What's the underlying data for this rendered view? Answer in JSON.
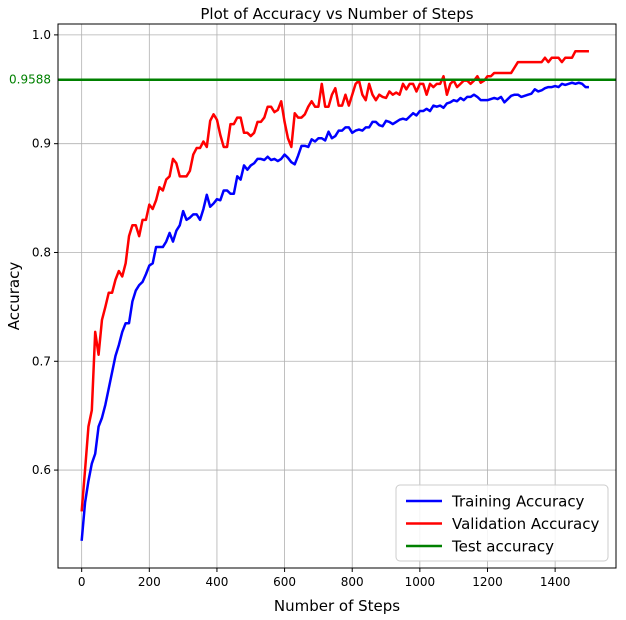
{
  "chart_data": {
    "type": "line",
    "title": "Plot of Accuracy vs Number of Steps",
    "xlabel": "Number of Steps",
    "ylabel": "Accuracy",
    "xlim": [
      -70,
      1580
    ],
    "ylim": [
      0.51,
      1.01
    ],
    "xticks": [
      0,
      200,
      400,
      600,
      800,
      1000,
      1200,
      1400
    ],
    "yticks": [
      0.6,
      0.7,
      0.8,
      0.9,
      1.0
    ],
    "ytick_labels": [
      "0.6",
      "0.7",
      "0.8",
      "0.9",
      "1.0"
    ],
    "grid": true,
    "legend_position": "lower-right",
    "reference_line": {
      "name": "Test accuracy",
      "y": 0.9588,
      "label": "0.9588",
      "color": "#008000"
    },
    "series": [
      {
        "name": "Training Accuracy",
        "color": "#0000ff",
        "points": [
          [
            0,
            0.535
          ],
          [
            10,
            0.57
          ],
          [
            20,
            0.59
          ],
          [
            30,
            0.606
          ],
          [
            40,
            0.615
          ],
          [
            50,
            0.64
          ],
          [
            60,
            0.648
          ],
          [
            70,
            0.66
          ],
          [
            80,
            0.675
          ],
          [
            90,
            0.69
          ],
          [
            100,
            0.705
          ],
          [
            110,
            0.715
          ],
          [
            120,
            0.727
          ],
          [
            130,
            0.735
          ],
          [
            140,
            0.735
          ],
          [
            150,
            0.755
          ],
          [
            160,
            0.765
          ],
          [
            170,
            0.77
          ],
          [
            180,
            0.773
          ],
          [
            190,
            0.78
          ],
          [
            200,
            0.788
          ],
          [
            210,
            0.79
          ],
          [
            220,
            0.805
          ],
          [
            230,
            0.805
          ],
          [
            240,
            0.805
          ],
          [
            250,
            0.81
          ],
          [
            260,
            0.818
          ],
          [
            270,
            0.81
          ],
          [
            280,
            0.82
          ],
          [
            290,
            0.825
          ],
          [
            300,
            0.838
          ],
          [
            310,
            0.83
          ],
          [
            320,
            0.832
          ],
          [
            330,
            0.835
          ],
          [
            340,
            0.835
          ],
          [
            350,
            0.83
          ],
          [
            360,
            0.84
          ],
          [
            370,
            0.853
          ],
          [
            380,
            0.842
          ],
          [
            390,
            0.845
          ],
          [
            400,
            0.849
          ],
          [
            410,
            0.848
          ],
          [
            420,
            0.857
          ],
          [
            430,
            0.857
          ],
          [
            440,
            0.854
          ],
          [
            450,
            0.854
          ],
          [
            460,
            0.87
          ],
          [
            470,
            0.867
          ],
          [
            480,
            0.88
          ],
          [
            490,
            0.876
          ],
          [
            500,
            0.88
          ],
          [
            510,
            0.882
          ],
          [
            520,
            0.886
          ],
          [
            530,
            0.886
          ],
          [
            540,
            0.885
          ],
          [
            550,
            0.888
          ],
          [
            560,
            0.885
          ],
          [
            570,
            0.886
          ],
          [
            580,
            0.884
          ],
          [
            590,
            0.886
          ],
          [
            600,
            0.89
          ],
          [
            610,
            0.887
          ],
          [
            620,
            0.883
          ],
          [
            630,
            0.881
          ],
          [
            640,
            0.889
          ],
          [
            650,
            0.898
          ],
          [
            660,
            0.898
          ],
          [
            670,
            0.897
          ],
          [
            680,
            0.904
          ],
          [
            690,
            0.902
          ],
          [
            700,
            0.905
          ],
          [
            710,
            0.905
          ],
          [
            720,
            0.903
          ],
          [
            730,
            0.911
          ],
          [
            740,
            0.905
          ],
          [
            750,
            0.907
          ],
          [
            760,
            0.912
          ],
          [
            770,
            0.912
          ],
          [
            780,
            0.915
          ],
          [
            790,
            0.915
          ],
          [
            800,
            0.91
          ],
          [
            810,
            0.912
          ],
          [
            820,
            0.913
          ],
          [
            830,
            0.912
          ],
          [
            840,
            0.915
          ],
          [
            850,
            0.915
          ],
          [
            860,
            0.92
          ],
          [
            870,
            0.92
          ],
          [
            880,
            0.917
          ],
          [
            890,
            0.916
          ],
          [
            900,
            0.921
          ],
          [
            910,
            0.92
          ],
          [
            920,
            0.918
          ],
          [
            930,
            0.92
          ],
          [
            940,
            0.922
          ],
          [
            950,
            0.923
          ],
          [
            960,
            0.922
          ],
          [
            970,
            0.925
          ],
          [
            980,
            0.928
          ],
          [
            990,
            0.926
          ],
          [
            1000,
            0.93
          ],
          [
            1010,
            0.93
          ],
          [
            1020,
            0.932
          ],
          [
            1030,
            0.93
          ],
          [
            1040,
            0.935
          ],
          [
            1050,
            0.934
          ],
          [
            1060,
            0.935
          ],
          [
            1070,
            0.933
          ],
          [
            1080,
            0.937
          ],
          [
            1090,
            0.938
          ],
          [
            1100,
            0.94
          ],
          [
            1110,
            0.939
          ],
          [
            1120,
            0.942
          ],
          [
            1130,
            0.94
          ],
          [
            1140,
            0.943
          ],
          [
            1150,
            0.943
          ],
          [
            1160,
            0.945
          ],
          [
            1170,
            0.943
          ],
          [
            1180,
            0.94
          ],
          [
            1190,
            0.94
          ],
          [
            1200,
            0.94
          ],
          [
            1210,
            0.941
          ],
          [
            1220,
            0.942
          ],
          [
            1230,
            0.941
          ],
          [
            1240,
            0.943
          ],
          [
            1250,
            0.938
          ],
          [
            1260,
            0.941
          ],
          [
            1270,
            0.944
          ],
          [
            1280,
            0.945
          ],
          [
            1290,
            0.945
          ],
          [
            1300,
            0.943
          ],
          [
            1310,
            0.944
          ],
          [
            1320,
            0.945
          ],
          [
            1330,
            0.946
          ],
          [
            1340,
            0.95
          ],
          [
            1350,
            0.948
          ],
          [
            1360,
            0.949
          ],
          [
            1370,
            0.951
          ],
          [
            1380,
            0.952
          ],
          [
            1390,
            0.952
          ],
          [
            1400,
            0.953
          ],
          [
            1410,
            0.952
          ],
          [
            1420,
            0.955
          ],
          [
            1430,
            0.954
          ],
          [
            1440,
            0.955
          ],
          [
            1450,
            0.956
          ],
          [
            1460,
            0.955
          ],
          [
            1470,
            0.956
          ],
          [
            1480,
            0.955
          ],
          [
            1490,
            0.952
          ],
          [
            1500,
            0.952
          ]
        ]
      },
      {
        "name": "Validation Accuracy",
        "color": "#ff0000",
        "points": [
          [
            0,
            0.562
          ],
          [
            10,
            0.6
          ],
          [
            20,
            0.64
          ],
          [
            30,
            0.655
          ],
          [
            40,
            0.727
          ],
          [
            50,
            0.706
          ],
          [
            60,
            0.738
          ],
          [
            70,
            0.75
          ],
          [
            80,
            0.763
          ],
          [
            90,
            0.763
          ],
          [
            100,
            0.775
          ],
          [
            110,
            0.783
          ],
          [
            120,
            0.778
          ],
          [
            130,
            0.79
          ],
          [
            140,
            0.815
          ],
          [
            150,
            0.825
          ],
          [
            160,
            0.825
          ],
          [
            170,
            0.815
          ],
          [
            180,
            0.83
          ],
          [
            190,
            0.83
          ],
          [
            200,
            0.844
          ],
          [
            210,
            0.84
          ],
          [
            220,
            0.848
          ],
          [
            230,
            0.86
          ],
          [
            240,
            0.857
          ],
          [
            250,
            0.867
          ],
          [
            260,
            0.87
          ],
          [
            270,
            0.886
          ],
          [
            280,
            0.882
          ],
          [
            290,
            0.87
          ],
          [
            300,
            0.87
          ],
          [
            310,
            0.87
          ],
          [
            320,
            0.875
          ],
          [
            330,
            0.89
          ],
          [
            340,
            0.896
          ],
          [
            350,
            0.896
          ],
          [
            360,
            0.902
          ],
          [
            370,
            0.897
          ],
          [
            380,
            0.921
          ],
          [
            390,
            0.927
          ],
          [
            400,
            0.922
          ],
          [
            410,
            0.908
          ],
          [
            420,
            0.897
          ],
          [
            430,
            0.897
          ],
          [
            440,
            0.918
          ],
          [
            450,
            0.918
          ],
          [
            460,
            0.924
          ],
          [
            470,
            0.924
          ],
          [
            480,
            0.91
          ],
          [
            490,
            0.91
          ],
          [
            500,
            0.907
          ],
          [
            510,
            0.91
          ],
          [
            520,
            0.92
          ],
          [
            530,
            0.92
          ],
          [
            540,
            0.924
          ],
          [
            550,
            0.934
          ],
          [
            560,
            0.934
          ],
          [
            570,
            0.929
          ],
          [
            580,
            0.931
          ],
          [
            590,
            0.939
          ],
          [
            600,
            0.92
          ],
          [
            610,
            0.905
          ],
          [
            620,
            0.897
          ],
          [
            630,
            0.928
          ],
          [
            640,
            0.924
          ],
          [
            650,
            0.924
          ],
          [
            660,
            0.927
          ],
          [
            670,
            0.934
          ],
          [
            680,
            0.939
          ],
          [
            690,
            0.934
          ],
          [
            700,
            0.934
          ],
          [
            710,
            0.955
          ],
          [
            720,
            0.934
          ],
          [
            730,
            0.934
          ],
          [
            740,
            0.945
          ],
          [
            750,
            0.951
          ],
          [
            760,
            0.935
          ],
          [
            770,
            0.935
          ],
          [
            780,
            0.945
          ],
          [
            790,
            0.935
          ],
          [
            800,
            0.945
          ],
          [
            810,
            0.955
          ],
          [
            820,
            0.958
          ],
          [
            830,
            0.945
          ],
          [
            840,
            0.94
          ],
          [
            850,
            0.955
          ],
          [
            860,
            0.945
          ],
          [
            870,
            0.94
          ],
          [
            880,
            0.945
          ],
          [
            890,
            0.943
          ],
          [
            900,
            0.942
          ],
          [
            910,
            0.948
          ],
          [
            920,
            0.945
          ],
          [
            930,
            0.947
          ],
          [
            940,
            0.945
          ],
          [
            950,
            0.955
          ],
          [
            960,
            0.95
          ],
          [
            970,
            0.955
          ],
          [
            980,
            0.955
          ],
          [
            990,
            0.948
          ],
          [
            1000,
            0.955
          ],
          [
            1010,
            0.955
          ],
          [
            1020,
            0.945
          ],
          [
            1030,
            0.955
          ],
          [
            1040,
            0.952
          ],
          [
            1050,
            0.955
          ],
          [
            1060,
            0.955
          ],
          [
            1070,
            0.962
          ],
          [
            1080,
            0.945
          ],
          [
            1090,
            0.955
          ],
          [
            1100,
            0.958
          ],
          [
            1110,
            0.952
          ],
          [
            1120,
            0.955
          ],
          [
            1130,
            0.958
          ],
          [
            1140,
            0.958
          ],
          [
            1150,
            0.955
          ],
          [
            1160,
            0.958
          ],
          [
            1170,
            0.962
          ],
          [
            1180,
            0.956
          ],
          [
            1190,
            0.958
          ],
          [
            1200,
            0.962
          ],
          [
            1210,
            0.962
          ],
          [
            1220,
            0.965
          ],
          [
            1230,
            0.965
          ],
          [
            1240,
            0.965
          ],
          [
            1250,
            0.965
          ],
          [
            1260,
            0.965
          ],
          [
            1270,
            0.965
          ],
          [
            1280,
            0.97
          ],
          [
            1290,
            0.975
          ],
          [
            1300,
            0.975
          ],
          [
            1310,
            0.975
          ],
          [
            1320,
            0.975
          ],
          [
            1330,
            0.975
          ],
          [
            1340,
            0.975
          ],
          [
            1350,
            0.975
          ],
          [
            1360,
            0.975
          ],
          [
            1370,
            0.979
          ],
          [
            1380,
            0.975
          ],
          [
            1390,
            0.979
          ],
          [
            1400,
            0.979
          ],
          [
            1410,
            0.979
          ],
          [
            1420,
            0.975
          ],
          [
            1430,
            0.979
          ],
          [
            1440,
            0.979
          ],
          [
            1450,
            0.979
          ],
          [
            1460,
            0.985
          ],
          [
            1470,
            0.985
          ],
          [
            1480,
            0.985
          ],
          [
            1490,
            0.985
          ],
          [
            1500,
            0.985
          ]
        ]
      }
    ]
  }
}
